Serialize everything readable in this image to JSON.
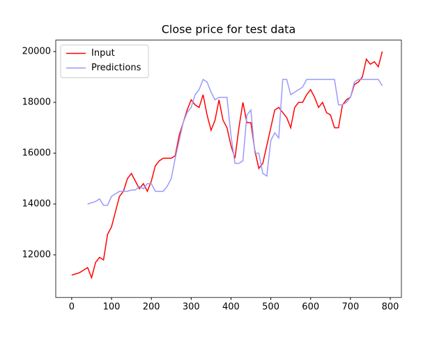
{
  "chart_data": {
    "type": "line",
    "title": "Close price for test data",
    "x": [
      0,
      10,
      20,
      30,
      40,
      50,
      60,
      70,
      80,
      90,
      100,
      110,
      120,
      130,
      140,
      150,
      160,
      170,
      180,
      190,
      200,
      210,
      220,
      230,
      240,
      250,
      260,
      270,
      280,
      290,
      300,
      310,
      320,
      330,
      340,
      350,
      360,
      370,
      380,
      390,
      400,
      410,
      420,
      430,
      440,
      450,
      460,
      470,
      480,
      490,
      500,
      510,
      520,
      530,
      540,
      550,
      560,
      570,
      580,
      590,
      600,
      610,
      620,
      630,
      640,
      650,
      660,
      670,
      680,
      690,
      700,
      710,
      720,
      730,
      740,
      750,
      760,
      770,
      780
    ],
    "series": [
      {
        "name": "Input",
        "color": "#ff0000",
        "values": [
          11200,
          11250,
          11300,
          11400,
          11500,
          11100,
          11700,
          11900,
          11800,
          12800,
          13100,
          13700,
          14300,
          14500,
          15000,
          15200,
          14900,
          14600,
          14800,
          14500,
          14900,
          15500,
          15700,
          15800,
          15800,
          15800,
          15900,
          16700,
          17200,
          17700,
          18100,
          17900,
          17800,
          18300,
          17500,
          16900,
          17300,
          18100,
          17300,
          17000,
          16300,
          15800,
          17000,
          18000,
          17200,
          17200,
          16100,
          15400,
          15600,
          16300,
          17000,
          17700,
          17800,
          17600,
          17400,
          17000,
          17800,
          18000,
          18000,
          18300,
          18500,
          18200,
          17800,
          18000,
          17600,
          17500,
          17000,
          17000,
          17900,
          18100,
          18200,
          18700,
          18800,
          19000,
          19700,
          19500,
          19600,
          19400,
          20000
        ]
      },
      {
        "name": "Predictions",
        "color": "#9999ff",
        "values": [
          null,
          null,
          null,
          null,
          14000,
          14050,
          14100,
          14200,
          13950,
          13950,
          14300,
          14400,
          14500,
          14500,
          14500,
          14550,
          14550,
          14700,
          14600,
          14800,
          14800,
          14500,
          14500,
          14500,
          14700,
          15000,
          15800,
          16500,
          17200,
          17600,
          17800,
          18300,
          18500,
          18900,
          18800,
          18400,
          18100,
          18200,
          18200,
          18200,
          16700,
          15600,
          15600,
          15700,
          17500,
          17700,
          16000,
          16000,
          15200,
          15100,
          16500,
          16800,
          16600,
          18900,
          18900,
          18300,
          18400,
          18500,
          18600,
          18900,
          18900,
          18900,
          18900,
          18900,
          18900,
          18900,
          18900,
          17900,
          17900,
          18000,
          18200,
          18800,
          18900,
          18900,
          18900,
          18900,
          18900,
          18900,
          18650
        ]
      }
    ],
    "xlim": [
      -40,
      828
    ],
    "xticks": [
      0,
      100,
      200,
      300,
      400,
      500,
      600,
      700,
      800
    ],
    "ylim": [
      10323,
      20449
    ],
    "yticks": [
      12000,
      14000,
      16000,
      18000,
      20000
    ],
    "grid": false,
    "legend": "upper-left"
  }
}
